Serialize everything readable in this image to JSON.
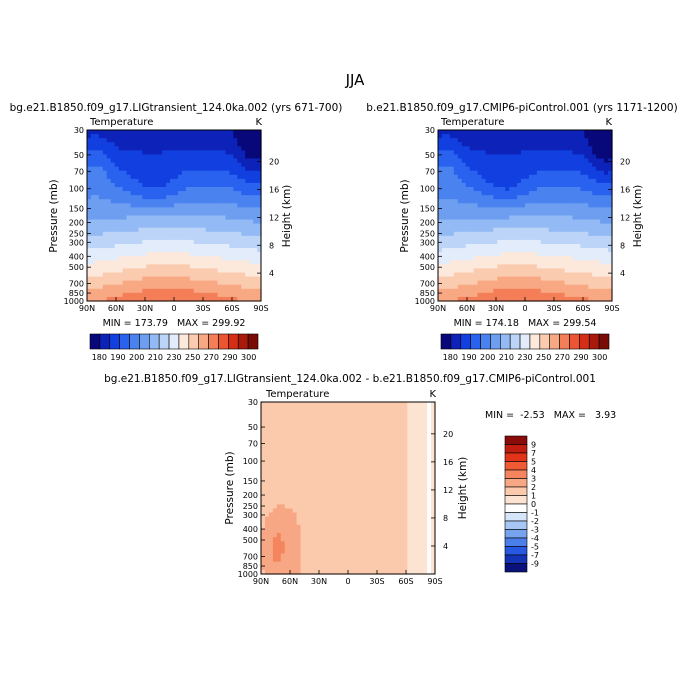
{
  "figure_title": "JJA",
  "chart_data": [
    {
      "type": "heatmap",
      "title": "bg.e21.B1850.f09_g17.LIGtransient_124.0ka.002 (yrs 671-700)",
      "variable": "Temperature",
      "units": "K",
      "xlabel": "",
      "ylabel": "Pressure (mb)",
      "ylabel_right": "Height (km)",
      "x_ticks": [
        "90N",
        "60N",
        "30N",
        "0",
        "30S",
        "60S",
        "90S"
      ],
      "y_ticks": [
        30,
        50,
        70,
        100,
        150,
        200,
        250,
        300,
        400,
        500,
        700,
        850,
        1000
      ],
      "height_ticks": [
        4,
        8,
        12,
        16,
        20
      ],
      "y_scale": "log",
      "ylim": [
        1000,
        30
      ],
      "stats": "MIN = 173.79   MAX = 299.92",
      "min": 173.79,
      "max": 299.92
    },
    {
      "type": "heatmap",
      "title": "b.e21.B1850.f09_g17.CMIP6-piControl.001 (yrs 1171-1200)",
      "variable": "Temperature",
      "units": "K",
      "xlabel": "",
      "ylabel": "Pressure (mb)",
      "ylabel_right": "Height (km)",
      "x_ticks": [
        "90N",
        "60N",
        "30N",
        "0",
        "30S",
        "60S",
        "90S"
      ],
      "y_ticks": [
        30,
        50,
        70,
        100,
        150,
        200,
        250,
        300,
        400,
        500,
        700,
        850,
        1000
      ],
      "height_ticks": [
        4,
        8,
        12,
        16,
        20
      ],
      "y_scale": "log",
      "ylim": [
        1000,
        30
      ],
      "stats": "MIN = 174.18   MAX = 299.54",
      "min": 174.18,
      "max": 299.54
    },
    {
      "type": "heatmap",
      "title": "bg.e21.B1850.f09_g17.LIGtransient_124.0ka.002 - b.e21.B1850.f09_g17.CMIP6-piControl.001",
      "variable": "Temperature",
      "units": "K",
      "xlabel": "",
      "ylabel": "Pressure (mb)",
      "ylabel_right": "Height (km)",
      "x_ticks": [
        "90N",
        "60N",
        "30N",
        "0",
        "30S",
        "60S",
        "90S"
      ],
      "y_ticks": [
        30,
        50,
        70,
        100,
        150,
        200,
        250,
        300,
        400,
        500,
        700,
        850,
        1000
      ],
      "height_ticks": [
        4,
        8,
        12,
        16,
        20
      ],
      "y_scale": "log",
      "ylim": [
        1000,
        30
      ],
      "stats": "MIN =  -2.53   MAX =   3.93",
      "min": -2.53,
      "max": 3.93
    }
  ],
  "colorbar_abs": {
    "labels": [
      "180",
      "190",
      "200",
      "210",
      "230",
      "250",
      "270",
      "290",
      "300"
    ],
    "colors": [
      "#08087a",
      "#0c22b8",
      "#1240e0",
      "#2a62f0",
      "#4a82f0",
      "#6e9ef0",
      "#93baf4",
      "#bcd4f8",
      "#e2ecfa",
      "#fde9dc",
      "#fbcbb0",
      "#f8a882",
      "#f47e58",
      "#ec5532",
      "#d42e16",
      "#a81a0c",
      "#7a0c06"
    ]
  },
  "colorbar_diff": {
    "labels": [
      "9",
      "7",
      "5",
      "4",
      "3",
      "2",
      "1",
      "0",
      "-1",
      "-2",
      "-3",
      "-4",
      "-5",
      "-7",
      "-9"
    ],
    "colors": [
      "#8a0c08",
      "#c21e10",
      "#e23418",
      "#f05a34",
      "#f4855e",
      "#f8a784",
      "#fbc9ac",
      "#fde4d2",
      "#ffffff",
      "#d6e6fa",
      "#a6c6f4",
      "#76a2ee",
      "#4a7ee8",
      "#2658e2",
      "#1434b8",
      "#08127a"
    ]
  }
}
